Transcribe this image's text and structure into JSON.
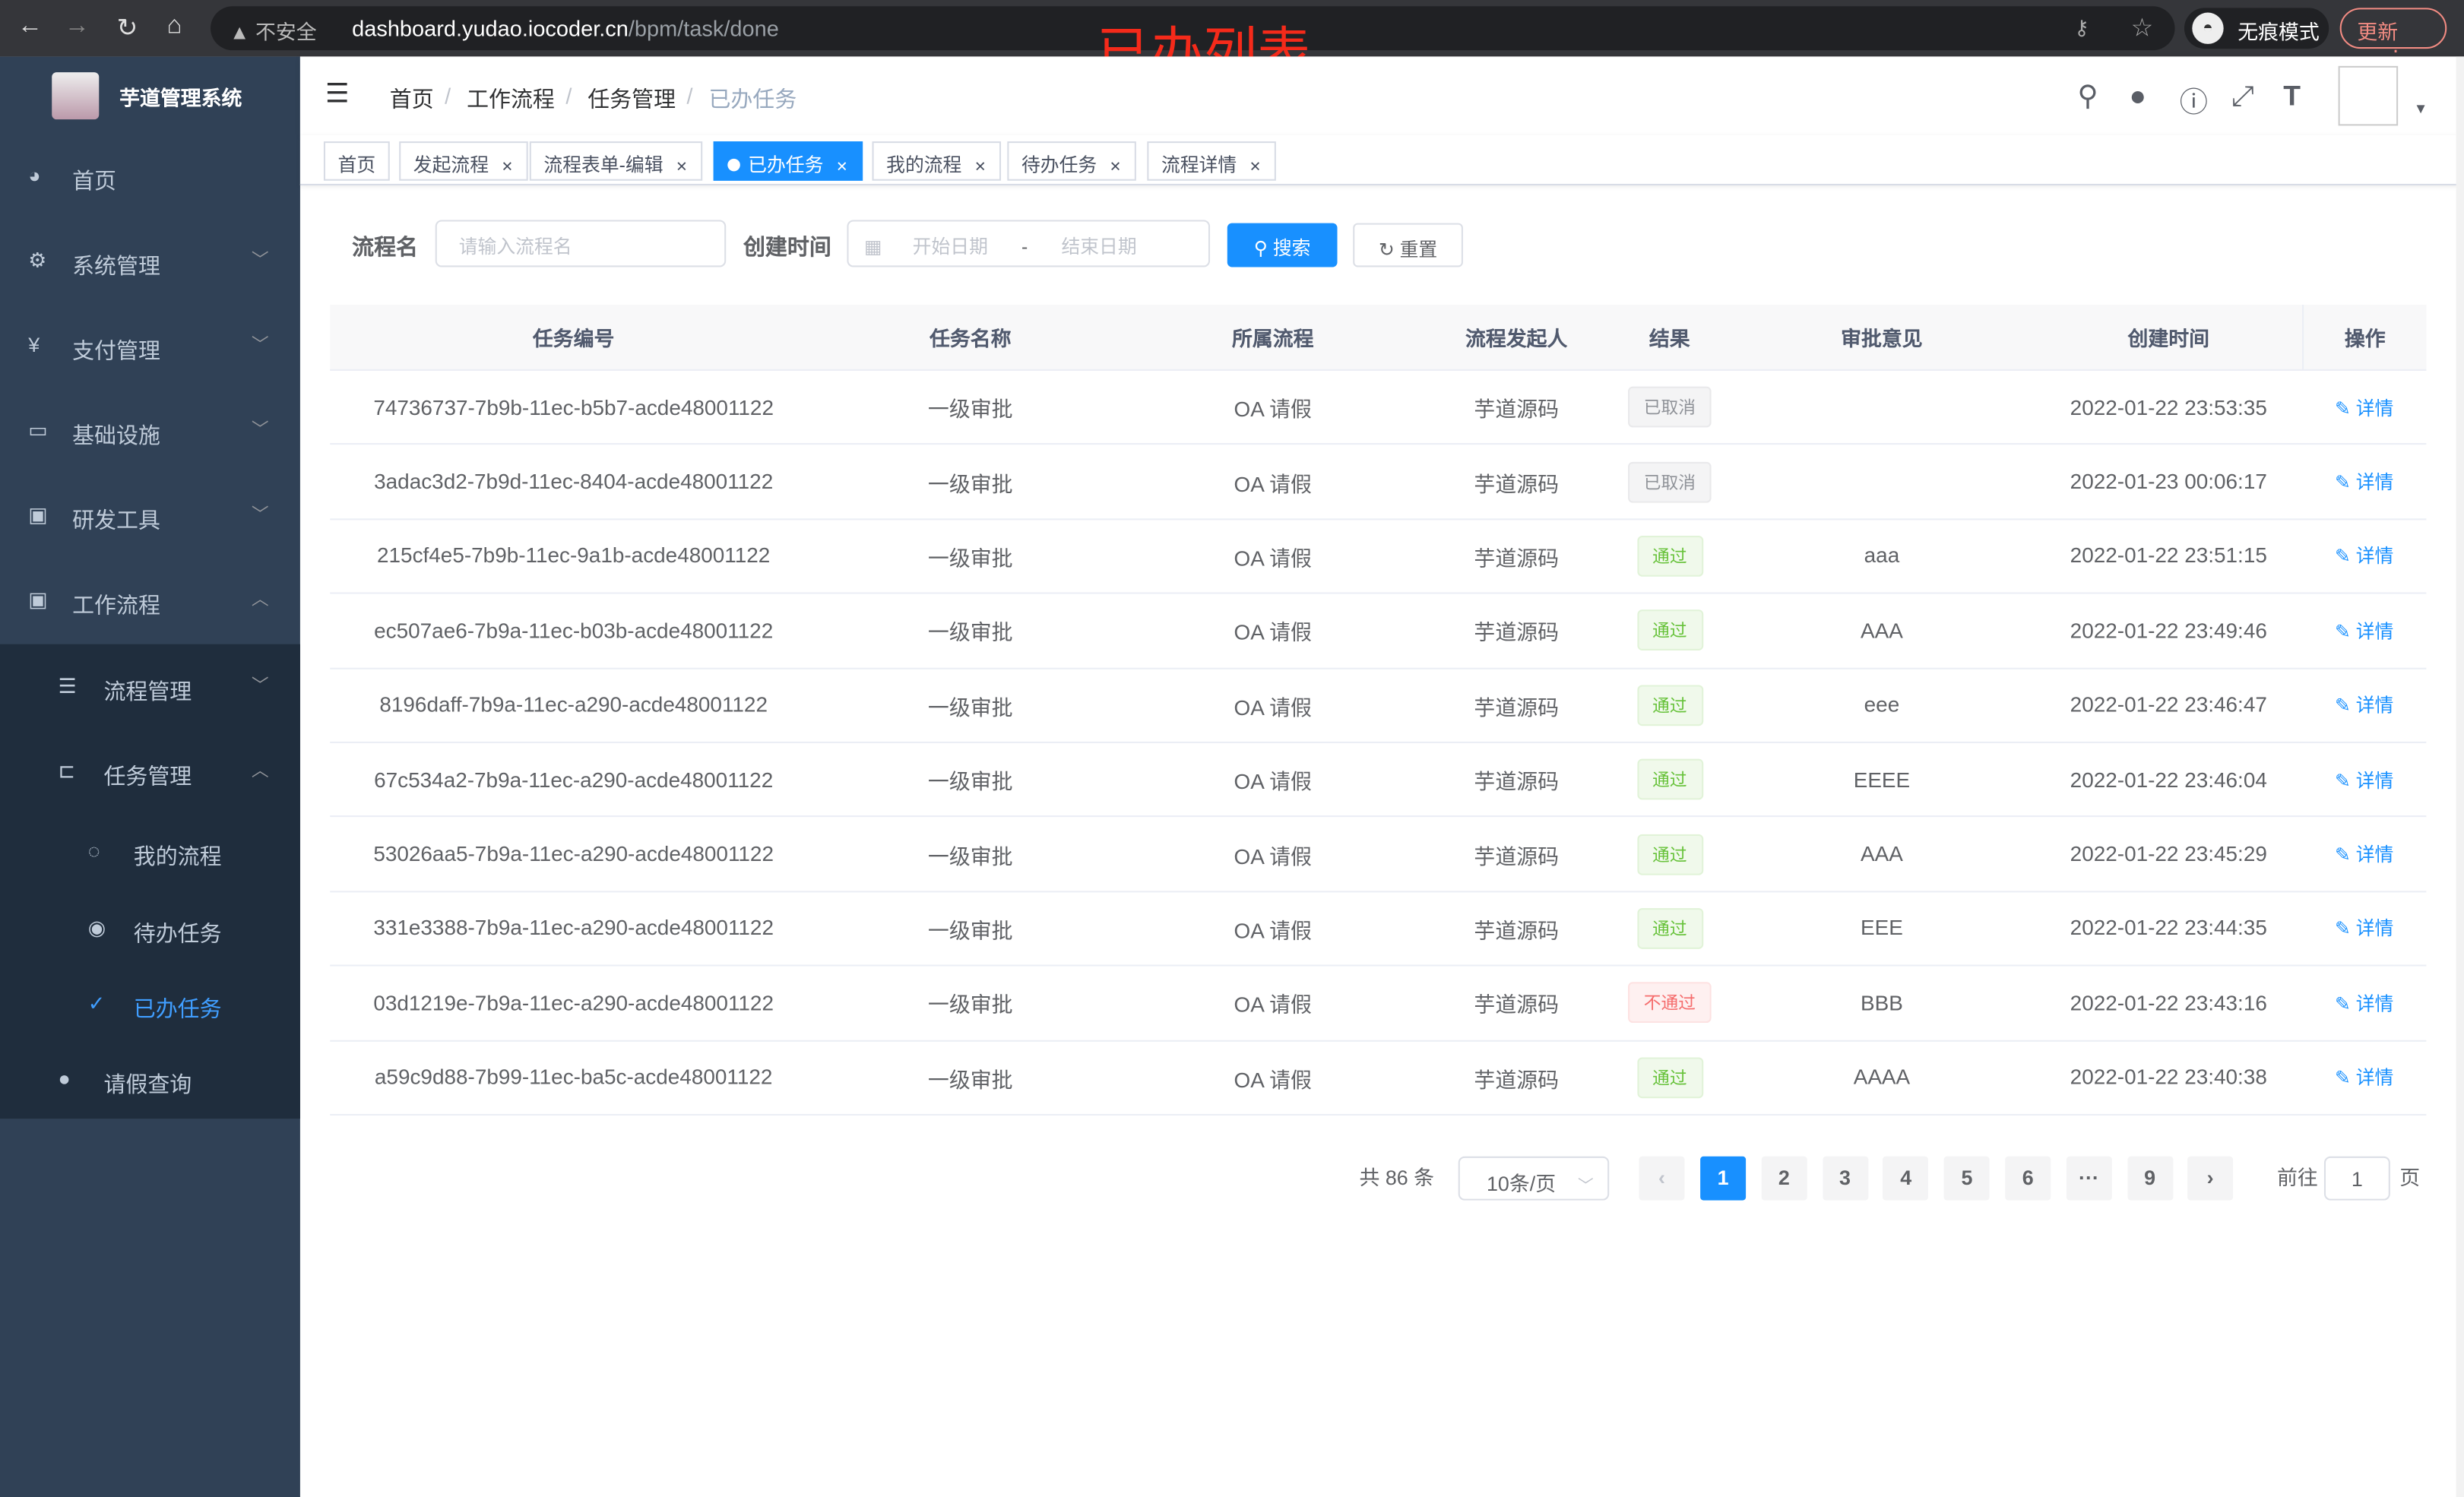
{
  "browser": {
    "insecure_label": "不安全",
    "url_host": "dashboard.yudao.iocoder.cn",
    "url_path": "/bpm/task/done",
    "incognito_label": "无痕模式",
    "update_label": "更新"
  },
  "annotation": "已办列表",
  "sidebar": {
    "app_title": "芋道管理系统",
    "items": [
      {
        "label": "首页",
        "icon": "dashboard-icon"
      },
      {
        "label": "系统管理",
        "icon": "gear-icon",
        "chevron": "down"
      },
      {
        "label": "支付管理",
        "icon": "yen-icon",
        "chevron": "down"
      },
      {
        "label": "基础设施",
        "icon": "monitor-icon",
        "chevron": "down"
      },
      {
        "label": "研发工具",
        "icon": "toolbox-icon",
        "chevron": "down"
      },
      {
        "label": "工作流程",
        "icon": "toolbox-icon",
        "chevron": "up"
      }
    ],
    "sub_items": [
      {
        "label": "流程管理",
        "icon": "list-icon",
        "chevron": "down",
        "level": 1
      },
      {
        "label": "任务管理",
        "icon": "tree-icon",
        "chevron": "up",
        "level": 1
      },
      {
        "label": "我的流程",
        "icon": "chat-icon",
        "level": 2
      },
      {
        "label": "待办任务",
        "icon": "eye-icon",
        "level": 2
      },
      {
        "label": "已办任务",
        "icon": "check-icon",
        "level": 2,
        "active": true
      },
      {
        "label": "请假查询",
        "icon": "user-icon",
        "level": 1
      }
    ]
  },
  "breadcrumb": [
    "首页",
    "工作流程",
    "任务管理",
    "已办任务"
  ],
  "tags": [
    {
      "label": "首页",
      "closable": false
    },
    {
      "label": "发起流程",
      "closable": true
    },
    {
      "label": "流程表单-编辑",
      "closable": true
    },
    {
      "label": "已办任务",
      "closable": true,
      "active": true
    },
    {
      "label": "我的流程",
      "closable": true
    },
    {
      "label": "待办任务",
      "closable": true
    },
    {
      "label": "流程详情",
      "closable": true
    }
  ],
  "search": {
    "name_label": "流程名",
    "name_placeholder": "请输入流程名",
    "time_label": "创建时间",
    "start_placeholder": "开始日期",
    "range_sep": "-",
    "end_placeholder": "结束日期",
    "search_button": "搜索",
    "reset_button": "重置"
  },
  "table": {
    "columns": [
      "任务编号",
      "任务名称",
      "所属流程",
      "流程发起人",
      "结果",
      "审批意见",
      "创建时间",
      "操作"
    ],
    "rows": [
      {
        "id": "74736737-7b9b-11ec-b5b7-acde48001122",
        "name": "一级审批",
        "process": "OA 请假",
        "starter": "芋道源码",
        "result": "已取消",
        "result_type": "info",
        "comment": "",
        "created": "2022-01-22 23:53:35",
        "action": "详情"
      },
      {
        "id": "3adac3d2-7b9d-11ec-8404-acde48001122",
        "name": "一级审批",
        "process": "OA 请假",
        "starter": "芋道源码",
        "result": "已取消",
        "result_type": "info",
        "comment": "",
        "created": "2022-01-23 00:06:17",
        "action": "详情"
      },
      {
        "id": "215cf4e5-7b9b-11ec-9a1b-acde48001122",
        "name": "一级审批",
        "process": "OA 请假",
        "starter": "芋道源码",
        "result": "通过",
        "result_type": "success",
        "comment": "aaa",
        "created": "2022-01-22 23:51:15",
        "action": "详情"
      },
      {
        "id": "ec507ae6-7b9a-11ec-b03b-acde48001122",
        "name": "一级审批",
        "process": "OA 请假",
        "starter": "芋道源码",
        "result": "通过",
        "result_type": "success",
        "comment": "AAA",
        "created": "2022-01-22 23:49:46",
        "action": "详情"
      },
      {
        "id": "8196daff-7b9a-11ec-a290-acde48001122",
        "name": "一级审批",
        "process": "OA 请假",
        "starter": "芋道源码",
        "result": "通过",
        "result_type": "success",
        "comment": "eee",
        "created": "2022-01-22 23:46:47",
        "action": "详情"
      },
      {
        "id": "67c534a2-7b9a-11ec-a290-acde48001122",
        "name": "一级审批",
        "process": "OA 请假",
        "starter": "芋道源码",
        "result": "通过",
        "result_type": "success",
        "comment": "EEEE",
        "created": "2022-01-22 23:46:04",
        "action": "详情"
      },
      {
        "id": "53026aa5-7b9a-11ec-a290-acde48001122",
        "name": "一级审批",
        "process": "OA 请假",
        "starter": "芋道源码",
        "result": "通过",
        "result_type": "success",
        "comment": "AAA",
        "created": "2022-01-22 23:45:29",
        "action": "详情"
      },
      {
        "id": "331e3388-7b9a-11ec-a290-acde48001122",
        "name": "一级审批",
        "process": "OA 请假",
        "starter": "芋道源码",
        "result": "通过",
        "result_type": "success",
        "comment": "EEE",
        "created": "2022-01-22 23:44:35",
        "action": "详情"
      },
      {
        "id": "03d1219e-7b9a-11ec-a290-acde48001122",
        "name": "一级审批",
        "process": "OA 请假",
        "starter": "芋道源码",
        "result": "不通过",
        "result_type": "danger",
        "comment": "BBB",
        "created": "2022-01-22 23:43:16",
        "action": "详情"
      },
      {
        "id": "a59c9d88-7b99-11ec-ba5c-acde48001122",
        "name": "一级审批",
        "process": "OA 请假",
        "starter": "芋道源码",
        "result": "通过",
        "result_type": "success",
        "comment": "AAAA",
        "created": "2022-01-22 23:40:38",
        "action": "详情"
      }
    ]
  },
  "pagination": {
    "total_text": "共 86 条",
    "page_size": "10条/页",
    "pages": [
      "1",
      "2",
      "3",
      "4",
      "5",
      "6",
      "···",
      "9"
    ],
    "current": "1",
    "goto_label": "前往",
    "goto_value": "1",
    "page_suffix": "页"
  },
  "colors": {
    "primary": "#1890ff",
    "sidebar_bg": "#304156",
    "submenu_bg": "#1f2d3d",
    "active_menu": "#409eff",
    "annotation": "#f52a1a"
  }
}
